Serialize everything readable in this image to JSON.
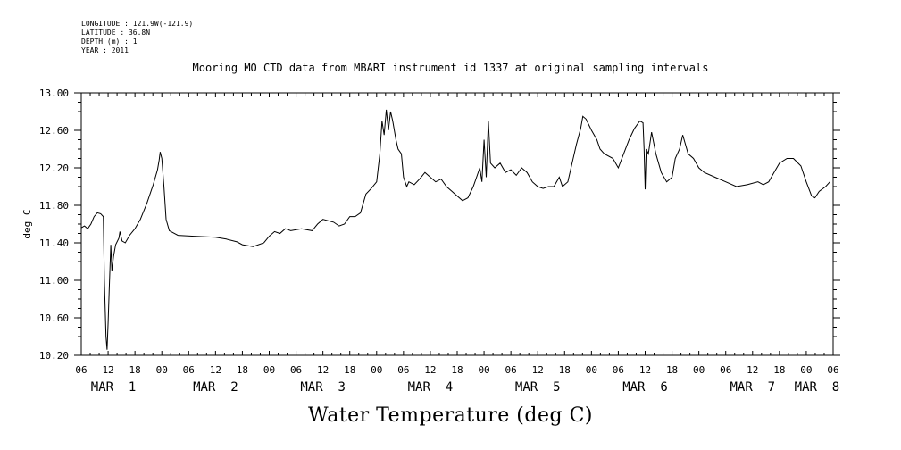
{
  "header": {
    "lines": [
      "LONGITUDE : 121.9W(-121.9)",
      "LATITUDE : 36.8N",
      "DEPTH (m) : 1",
      "YEAR : 2011"
    ]
  },
  "chart_data": {
    "type": "line",
    "title": "Mooring MO CTD data from MBARI instrument id 1337 at original sampling intervals",
    "footer_title": "Water Temperature (deg C)",
    "ylabel": "deg C",
    "ylim": [
      10.2,
      13.0
    ],
    "xlim": [
      0.25,
      7.25
    ],
    "x_unit": "days since MAR 1 00:00 (2011)",
    "y_ticks": [
      "10.20",
      "10.60",
      "11.00",
      "11.40",
      "11.80",
      "12.20",
      "12.60",
      "13.00"
    ],
    "x_hour_labels": [
      "06",
      "12",
      "18",
      "00",
      "06",
      "12",
      "18",
      "00",
      "06",
      "12",
      "18",
      "00",
      "06",
      "12",
      "18",
      "00",
      "06",
      "12",
      "18",
      "00",
      "06",
      "12",
      "18",
      "00",
      "06",
      "12",
      "18",
      "00",
      "06"
    ],
    "x_day_labels": [
      {
        "label": "MAR  1",
        "x": 0.55
      },
      {
        "label": "MAR  2",
        "x": 1.5
      },
      {
        "label": "MAR  3",
        "x": 2.5
      },
      {
        "label": "MAR  4",
        "x": 3.5
      },
      {
        "label": "MAR  5",
        "x": 4.5
      },
      {
        "label": "MAR  6",
        "x": 5.5
      },
      {
        "label": "MAR  7",
        "x": 6.5
      },
      {
        "label": "MAR  8",
        "x": 7.1
      }
    ],
    "series": [
      {
        "name": "Water Temperature",
        "points": [
          [
            0.25,
            11.56
          ],
          [
            0.28,
            11.58
          ],
          [
            0.31,
            11.55
          ],
          [
            0.34,
            11.6
          ],
          [
            0.37,
            11.68
          ],
          [
            0.4,
            11.72
          ],
          [
            0.43,
            11.71
          ],
          [
            0.455,
            11.68
          ],
          [
            0.465,
            11.0
          ],
          [
            0.48,
            10.4
          ],
          [
            0.49,
            10.26
          ],
          [
            0.5,
            10.55
          ],
          [
            0.51,
            10.9
          ],
          [
            0.525,
            11.38
          ],
          [
            0.535,
            11.1
          ],
          [
            0.55,
            11.25
          ],
          [
            0.57,
            11.38
          ],
          [
            0.6,
            11.45
          ],
          [
            0.61,
            11.52
          ],
          [
            0.63,
            11.42
          ],
          [
            0.66,
            11.4
          ],
          [
            0.7,
            11.48
          ],
          [
            0.75,
            11.55
          ],
          [
            0.8,
            11.65
          ],
          [
            0.86,
            11.82
          ],
          [
            0.92,
            12.02
          ],
          [
            0.96,
            12.18
          ],
          [
            0.975,
            12.28
          ],
          [
            0.985,
            12.37
          ],
          [
            1.0,
            12.3
          ],
          [
            1.02,
            12.0
          ],
          [
            1.04,
            11.65
          ],
          [
            1.07,
            11.53
          ],
          [
            1.15,
            11.48
          ],
          [
            1.3,
            11.47
          ],
          [
            1.5,
            11.46
          ],
          [
            1.6,
            11.44
          ],
          [
            1.7,
            11.41
          ],
          [
            1.75,
            11.38
          ],
          [
            1.85,
            11.36
          ],
          [
            1.95,
            11.4
          ],
          [
            2.0,
            11.47
          ],
          [
            2.05,
            11.52
          ],
          [
            2.1,
            11.5
          ],
          [
            2.15,
            11.55
          ],
          [
            2.2,
            11.53
          ],
          [
            2.3,
            11.55
          ],
          [
            2.4,
            11.53
          ],
          [
            2.45,
            11.6
          ],
          [
            2.5,
            11.65
          ],
          [
            2.6,
            11.62
          ],
          [
            2.65,
            11.58
          ],
          [
            2.7,
            11.6
          ],
          [
            2.75,
            11.68
          ],
          [
            2.8,
            11.68
          ],
          [
            2.85,
            11.72
          ],
          [
            2.9,
            11.92
          ],
          [
            2.95,
            11.98
          ],
          [
            3.0,
            12.05
          ],
          [
            3.03,
            12.35
          ],
          [
            3.05,
            12.7
          ],
          [
            3.07,
            12.55
          ],
          [
            3.09,
            12.82
          ],
          [
            3.11,
            12.6
          ],
          [
            3.13,
            12.8
          ],
          [
            3.15,
            12.7
          ],
          [
            3.18,
            12.5
          ],
          [
            3.2,
            12.4
          ],
          [
            3.23,
            12.35
          ],
          [
            3.25,
            12.1
          ],
          [
            3.28,
            12.0
          ],
          [
            3.3,
            12.05
          ],
          [
            3.35,
            12.02
          ],
          [
            3.4,
            12.08
          ],
          [
            3.45,
            12.15
          ],
          [
            3.5,
            12.1
          ],
          [
            3.55,
            12.05
          ],
          [
            3.6,
            12.08
          ],
          [
            3.65,
            12.0
          ],
          [
            3.7,
            11.95
          ],
          [
            3.8,
            11.85
          ],
          [
            3.85,
            11.88
          ],
          [
            3.9,
            12.0
          ],
          [
            3.93,
            12.1
          ],
          [
            3.96,
            12.2
          ],
          [
            3.98,
            12.05
          ],
          [
            4.0,
            12.5
          ],
          [
            4.02,
            12.1
          ],
          [
            4.04,
            12.7
          ],
          [
            4.06,
            12.25
          ],
          [
            4.1,
            12.2
          ],
          [
            4.15,
            12.25
          ],
          [
            4.2,
            12.15
          ],
          [
            4.25,
            12.18
          ],
          [
            4.3,
            12.12
          ],
          [
            4.35,
            12.2
          ],
          [
            4.4,
            12.15
          ],
          [
            4.45,
            12.05
          ],
          [
            4.5,
            12.0
          ],
          [
            4.55,
            11.98
          ],
          [
            4.6,
            12.0
          ],
          [
            4.65,
            12.0
          ],
          [
            4.7,
            12.1
          ],
          [
            4.73,
            12.0
          ],
          [
            4.78,
            12.05
          ],
          [
            4.82,
            12.25
          ],
          [
            4.86,
            12.45
          ],
          [
            4.9,
            12.62
          ],
          [
            4.92,
            12.75
          ],
          [
            4.95,
            12.72
          ],
          [
            5.0,
            12.6
          ],
          [
            5.05,
            12.5
          ],
          [
            5.08,
            12.4
          ],
          [
            5.12,
            12.35
          ],
          [
            5.2,
            12.3
          ],
          [
            5.25,
            12.2
          ],
          [
            5.3,
            12.35
          ],
          [
            5.35,
            12.5
          ],
          [
            5.4,
            12.62
          ],
          [
            5.45,
            12.7
          ],
          [
            5.48,
            12.68
          ],
          [
            5.49,
            12.4
          ],
          [
            5.5,
            11.97
          ],
          [
            5.51,
            12.4
          ],
          [
            5.53,
            12.35
          ],
          [
            5.56,
            12.58
          ],
          [
            5.6,
            12.35
          ],
          [
            5.65,
            12.15
          ],
          [
            5.7,
            12.05
          ],
          [
            5.75,
            12.1
          ],
          [
            5.78,
            12.3
          ],
          [
            5.82,
            12.4
          ],
          [
            5.85,
            12.55
          ],
          [
            5.9,
            12.35
          ],
          [
            5.95,
            12.3
          ],
          [
            6.0,
            12.2
          ],
          [
            6.05,
            12.15
          ],
          [
            6.15,
            12.1
          ],
          [
            6.25,
            12.05
          ],
          [
            6.35,
            12.0
          ],
          [
            6.45,
            12.02
          ],
          [
            6.55,
            12.05
          ],
          [
            6.6,
            12.02
          ],
          [
            6.65,
            12.05
          ],
          [
            6.7,
            12.15
          ],
          [
            6.75,
            12.25
          ],
          [
            6.82,
            12.3
          ],
          [
            6.88,
            12.3
          ],
          [
            6.95,
            12.22
          ],
          [
            7.0,
            12.05
          ],
          [
            7.05,
            11.9
          ],
          [
            7.08,
            11.88
          ],
          [
            7.12,
            11.95
          ],
          [
            7.18,
            12.0
          ],
          [
            7.22,
            12.05
          ]
        ]
      }
    ]
  }
}
